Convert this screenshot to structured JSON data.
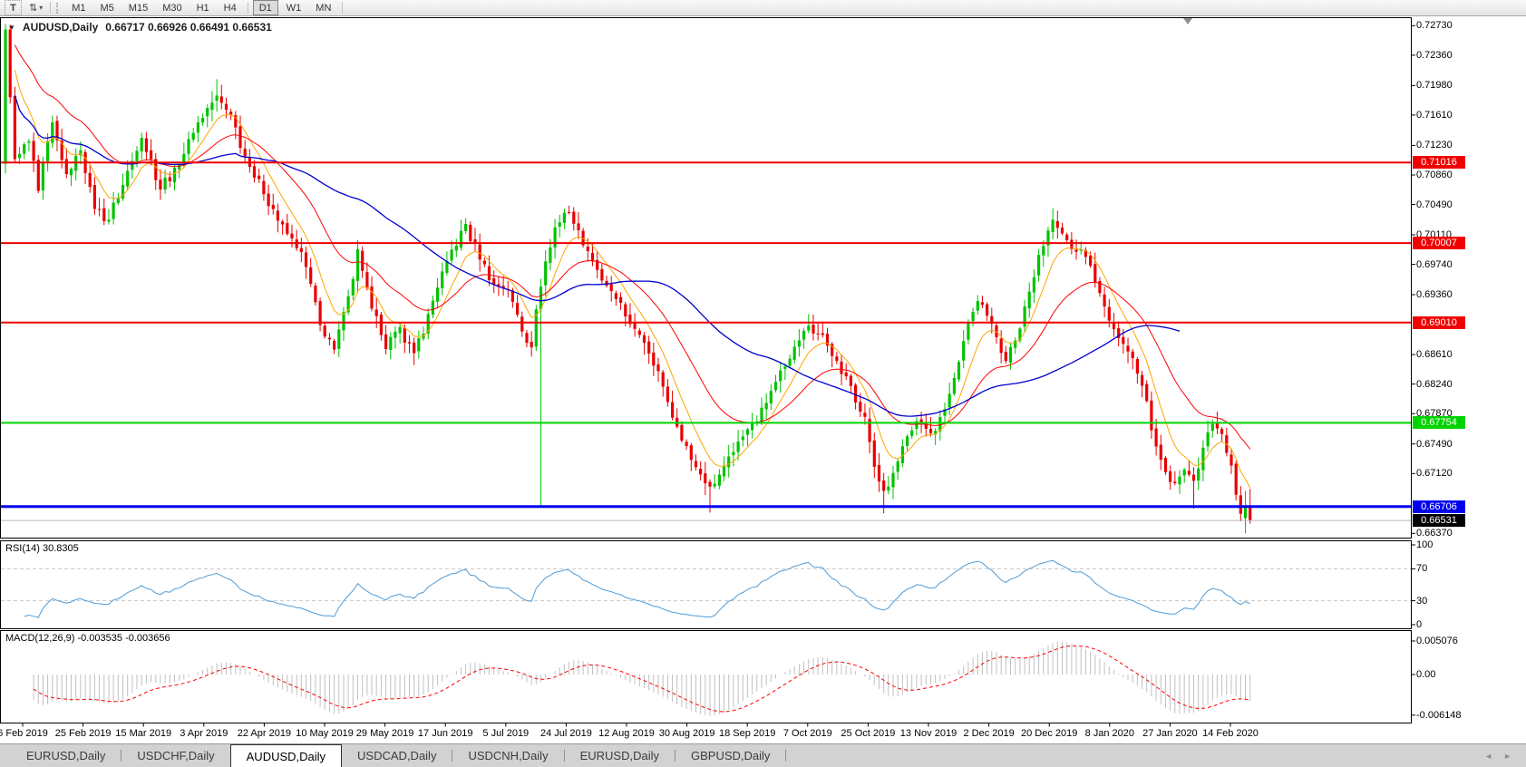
{
  "toolbar": {
    "text_tool_label": "T",
    "arrange_icon": "⇅",
    "dropdown_caret": "▾",
    "timeframes": [
      "M1",
      "M5",
      "M15",
      "M30",
      "H1",
      "H4",
      "D1",
      "W1",
      "MN"
    ],
    "active_timeframe": "D1"
  },
  "chart": {
    "menu_triangle": "▼",
    "symbol": "AUDUSD,Daily",
    "ohlc": "0.66717 0.66926 0.66491 0.66531",
    "price_axis_labels": [
      "0.72730",
      "0.72360",
      "0.71980",
      "0.71610",
      "0.71230",
      "0.70860",
      "0.70490",
      "0.70110",
      "0.69740",
      "0.69360",
      "0.68610",
      "0.68240",
      "0.67870",
      "0.67490",
      "0.67120",
      "0.66370"
    ],
    "hlines": [
      {
        "label": "0.71016",
        "price": 0.71016,
        "color": "#F00000",
        "width": 2
      },
      {
        "label": "0.70007",
        "price": 0.70007,
        "color": "#F00000",
        "width": 2
      },
      {
        "label": "0.69010",
        "price": 0.6901,
        "color": "#F00000",
        "width": 2
      },
      {
        "label": "0.67754",
        "price": 0.67754,
        "color": "#00D400",
        "width": 2
      },
      {
        "label": "0.66706",
        "price": 0.66706,
        "color": "#0000F0",
        "width": 3
      }
    ],
    "current_price": {
      "label": "0.66531",
      "price": 0.66531,
      "line_color": "#BBBBBB",
      "badge_color": "#000000"
    },
    "colors": {
      "bull": "#00C300",
      "bear": "#E80000",
      "ma_fast": "#FFA500",
      "ma_mid": "#FF0000",
      "ma_slow": "#0000CC"
    },
    "candle_anchors": [
      [
        0,
        0.7268
      ],
      [
        2,
        0.7105
      ],
      [
        5,
        0.7125
      ],
      [
        7,
        0.7068
      ],
      [
        10,
        0.715
      ],
      [
        13,
        0.7088
      ],
      [
        16,
        0.7118
      ],
      [
        19,
        0.7042
      ],
      [
        22,
        0.703
      ],
      [
        26,
        0.709
      ],
      [
        29,
        0.7135
      ],
      [
        33,
        0.707
      ],
      [
        37,
        0.71
      ],
      [
        40,
        0.714
      ],
      [
        45,
        0.7185
      ],
      [
        48,
        0.716
      ],
      [
        52,
        0.7095
      ],
      [
        57,
        0.7042
      ],
      [
        60,
        0.701
      ],
      [
        63,
        0.699
      ],
      [
        67,
        0.69
      ],
      [
        70,
        0.6868
      ],
      [
        73,
        0.6935
      ],
      [
        75,
        0.699
      ],
      [
        78,
        0.692
      ],
      [
        81,
        0.687
      ],
      [
        84,
        0.6895
      ],
      [
        87,
        0.686
      ],
      [
        90,
        0.691
      ],
      [
        94,
        0.698
      ],
      [
        98,
        0.7022
      ],
      [
        101,
        0.698
      ],
      [
        104,
        0.695
      ],
      [
        107,
        0.6942
      ],
      [
        110,
        0.6892
      ],
      [
        112,
        0.687
      ],
      [
        113,
        0.692
      ],
      [
        115,
        0.6975
      ],
      [
        117,
        0.702
      ],
      [
        119,
        0.704
      ],
      [
        121,
        0.7025
      ],
      [
        124,
        0.699
      ],
      [
        127,
        0.6955
      ],
      [
        130,
        0.693
      ],
      [
        133,
        0.69
      ],
      [
        136,
        0.6875
      ],
      [
        139,
        0.684
      ],
      [
        141,
        0.68
      ],
      [
        143,
        0.677
      ],
      [
        145,
        0.6745
      ],
      [
        147,
        0.672
      ],
      [
        150,
        0.6695
      ],
      [
        153,
        0.672
      ],
      [
        156,
        0.675
      ],
      [
        159,
        0.6775
      ],
      [
        162,
        0.68
      ],
      [
        165,
        0.684
      ],
      [
        168,
        0.687
      ],
      [
        171,
        0.6895
      ],
      [
        174,
        0.6885
      ],
      [
        177,
        0.685
      ],
      [
        180,
        0.682
      ],
      [
        183,
        0.6785
      ],
      [
        185,
        0.672
      ],
      [
        187,
        0.669
      ],
      [
        189,
        0.671
      ],
      [
        191,
        0.6745
      ],
      [
        194,
        0.6775
      ],
      [
        197,
        0.676
      ],
      [
        200,
        0.679
      ],
      [
        203,
        0.685
      ],
      [
        205,
        0.69
      ],
      [
        207,
        0.693
      ],
      [
        209,
        0.691
      ],
      [
        211,
        0.688
      ],
      [
        213,
        0.6855
      ],
      [
        215,
        0.688
      ],
      [
        217,
        0.692
      ],
      [
        219,
        0.696
      ],
      [
        221,
        0.7
      ],
      [
        223,
        0.703
      ],
      [
        225,
        0.7015
      ],
      [
        227,
        0.699
      ],
      [
        229,
        0.6995
      ],
      [
        231,
        0.697
      ],
      [
        233,
        0.694
      ],
      [
        235,
        0.6905
      ],
      [
        237,
        0.688
      ],
      [
        239,
        0.6862
      ],
      [
        241,
        0.684
      ],
      [
        243,
        0.68
      ],
      [
        245,
        0.6745
      ],
      [
        247,
        0.6715
      ],
      [
        249,
        0.67
      ],
      [
        251,
        0.6715
      ],
      [
        253,
        0.67
      ],
      [
        255,
        0.6745
      ],
      [
        257,
        0.6775
      ],
      [
        259,
        0.676
      ],
      [
        261,
        0.672
      ],
      [
        263,
        0.666
      ],
      [
        264,
        0.6672
      ],
      [
        265,
        0.66531
      ]
    ],
    "special_candles": {
      "0": {
        "o": 0.71,
        "h": 0.7275,
        "l": 0.7088,
        "c": 0.7268
      },
      "45": {
        "h": 0.7206
      },
      "114": {
        "l": 0.667
      },
      "150": {
        "l": 0.6663
      },
      "187": {
        "l": 0.6662
      },
      "253": {
        "l": 0.6668
      },
      "263": {
        "l": 0.6652
      },
      "264": {
        "o": 0.6656,
        "h": 0.669,
        "l": 0.6637,
        "c": 0.6672
      },
      "265": {
        "o": 0.66717,
        "h": 0.66926,
        "l": 0.66491,
        "c": 0.66531
      }
    }
  },
  "rsi": {
    "label": "RSI(14) 30.8305",
    "axis_labels": [
      "100",
      "70",
      "30",
      "0"
    ],
    "axis_values": [
      100,
      70,
      30,
      0
    ],
    "levels": [
      70,
      30
    ],
    "color": "#4F9BD5",
    "level_color": "#C8C8C8"
  },
  "macd": {
    "label": "MACD(12,26,9) -0.003535 -0.003656",
    "axis_labels": [
      "0.005076",
      "0.00",
      "-0.006148"
    ],
    "axis_values": [
      0.005076,
      0,
      -0.006148
    ],
    "hist_color": "#C0C0C0",
    "signal_color": "#FF0000"
  },
  "date_axis": {
    "labels": [
      "6 Feb 2019",
      "25 Feb 2019",
      "15 Mar 2019",
      "3 Apr 2019",
      "22 Apr 2019",
      "10 May 2019",
      "29 May 2019",
      "17 Jun 2019",
      "5 Jul 2019",
      "24 Jul 2019",
      "12 Aug 2019",
      "30 Aug 2019",
      "18 Sep 2019",
      "7 Oct 2019",
      "25 Oct 2019",
      "13 Nov 2019",
      "2 Dec 2019",
      "20 Dec 2019",
      "8 Jan 2020",
      "27 Jan 2020",
      "14 Feb 2020"
    ]
  },
  "tabs": {
    "items": [
      "EURUSD,Daily",
      "USDCHF,Daily",
      "AUDUSD,Daily",
      "USDCAD,Daily",
      "USDCNH,Daily",
      "EURUSD,Daily",
      "GBPUSD,Daily"
    ],
    "active_index": 2
  },
  "scrollbar": {
    "left_arrow": "◄",
    "right_arrow": "►"
  }
}
